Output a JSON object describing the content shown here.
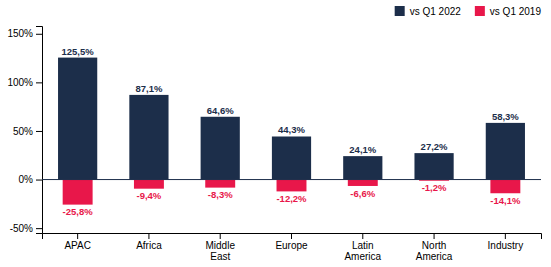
{
  "chart_data": {
    "type": "bar",
    "categories": [
      "APAC",
      "Africa",
      "Middle\nEast",
      "Europe",
      "Latin\nAmerica",
      "North\nAmerica",
      "Industry"
    ],
    "series": [
      {
        "name": "vs Q1 2022",
        "color": "#1c2e4a",
        "values": [
          125.5,
          87.1,
          64.6,
          44.3,
          24.1,
          27.2,
          58.3
        ],
        "value_labels": [
          "125,5%",
          "87,1%",
          "64,6%",
          "44,3%",
          "24,1%",
          "27,2%",
          "58,3%"
        ]
      },
      {
        "name": "vs Q1 2019",
        "color": "#e8174a",
        "values": [
          -25.8,
          -9.4,
          -8.3,
          -12.2,
          -6.6,
          -1.2,
          -14.1
        ],
        "value_labels": [
          "-25,8%",
          "-9,4%",
          "-8,3%",
          "-12,2%",
          "-6,6%",
          "-1,2%",
          "-14,1%"
        ]
      }
    ],
    "ylim": [
      -55,
      158
    ],
    "yticks": [
      {
        "value": -50,
        "label": "-50%"
      },
      {
        "value": 0,
        "label": "0%"
      },
      {
        "value": 50,
        "label": "50%"
      },
      {
        "value": 100,
        "label": "100%"
      },
      {
        "value": 150,
        "label": "150%"
      }
    ],
    "data_labels": true,
    "legend": "upper right",
    "grid": false
  }
}
